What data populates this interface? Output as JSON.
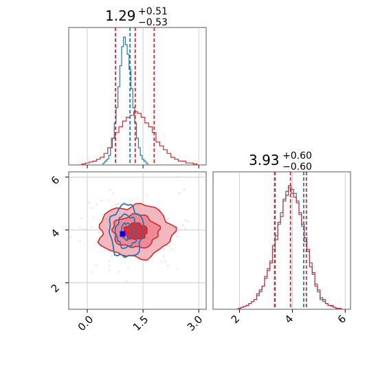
{
  "colors": {
    "dist_a": "#1f77b4",
    "dist_b": "#d62728",
    "marker": "#0000ff",
    "grid": "#cccccc",
    "axes": "#555555"
  },
  "chart_data": [
    {
      "type": "histogram",
      "panel": "marginal-x",
      "title": "1.29",
      "title_plus": "+0.51",
      "title_minus": "−0.53",
      "xlim": [
        -0.5,
        3.2
      ],
      "grid": true,
      "series": [
        {
          "color": "#1f77b4",
          "bin_width": 0.05,
          "x": [
            0.45,
            0.5,
            0.55,
            0.6,
            0.65,
            0.7,
            0.75,
            0.8,
            0.85,
            0.9,
            0.95,
            1.0,
            1.05,
            1.1,
            1.15,
            1.2,
            1.25,
            1.3,
            1.35,
            1.4,
            1.45,
            1.5,
            1.55,
            1.6
          ],
          "counts": [
            1,
            2,
            3,
            5,
            9,
            14,
            22,
            30,
            41,
            52,
            62,
            67,
            63,
            58,
            50,
            40,
            30,
            22,
            14,
            9,
            5,
            3,
            2,
            1
          ],
          "quantiles": [
            1.15
          ]
        },
        {
          "color": "#d62728",
          "bin_width": 0.1,
          "x": [
            -0.1,
            0.0,
            0.1,
            0.2,
            0.3,
            0.4,
            0.5,
            0.6,
            0.7,
            0.8,
            0.9,
            1.0,
            1.1,
            1.2,
            1.3,
            1.4,
            1.5,
            1.6,
            1.7,
            1.8,
            1.9,
            2.0,
            2.1,
            2.2,
            2.3,
            2.4,
            2.5,
            2.6,
            2.7,
            2.8,
            2.9
          ],
          "counts": [
            0.5,
            1,
            1.5,
            2,
            3,
            4,
            6,
            9,
            14,
            17,
            20,
            23,
            25,
            26,
            28,
            27,
            25,
            22,
            20,
            17,
            12,
            10,
            8,
            6,
            4,
            3,
            2,
            2,
            1,
            1,
            0.5
          ],
          "quantiles": [
            0.76,
            1.29,
            1.8
          ]
        }
      ]
    },
    {
      "type": "contour",
      "panel": "joint",
      "xlim": [
        -0.5,
        3.2
      ],
      "ylim": [
        1.0,
        6.2
      ],
      "xticks": [
        "0.0",
        "1.5",
        "3.0"
      ],
      "yticks": [
        "2",
        "4",
        "6"
      ],
      "xtick_values": [
        0.0,
        1.5,
        3.0
      ],
      "ytick_values": [
        2,
        4,
        6
      ],
      "grid": true,
      "marker": {
        "x": 0.95,
        "y": 3.85
      },
      "series": [
        {
          "color": "#d62728",
          "center": [
            1.3,
            3.95
          ],
          "sigma": [
            0.62,
            0.62
          ],
          "levels": [
            0.5,
            1.0,
            1.6
          ],
          "filled": true
        },
        {
          "color": "#1f77b4",
          "center": [
            1.05,
            3.95
          ],
          "sigma": [
            0.28,
            0.62
          ],
          "levels": [
            0.5,
            1.0,
            1.6
          ],
          "filled": false
        }
      ]
    },
    {
      "type": "histogram",
      "panel": "marginal-y",
      "title": "3.93",
      "title_plus": "+0.60",
      "title_minus": "−0.60",
      "xlim": [
        1.0,
        6.2
      ],
      "xticks": [
        "2",
        "4",
        "6"
      ],
      "xtick_values": [
        2,
        4,
        6
      ],
      "grid": true,
      "series": [
        {
          "color": "#1f77b4",
          "bin_width": 0.1,
          "x": [
            2.0,
            2.1,
            2.2,
            2.3,
            2.4,
            2.5,
            2.6,
            2.7,
            2.8,
            2.9,
            3.0,
            3.1,
            3.2,
            3.3,
            3.4,
            3.5,
            3.6,
            3.7,
            3.8,
            3.9,
            4.0,
            4.1,
            4.2,
            4.3,
            4.4,
            4.5,
            4.6,
            4.7,
            4.8,
            4.9,
            5.0,
            5.1,
            5.2,
            5.3,
            5.4,
            5.5,
            5.6,
            5.7,
            5.8
          ],
          "counts": [
            0.5,
            1,
            1.5,
            2,
            3,
            4,
            5,
            7,
            9,
            12,
            16,
            20,
            25,
            31,
            38,
            44,
            50,
            56,
            61,
            64,
            62,
            60,
            56,
            50,
            43,
            37,
            30,
            24,
            18,
            13,
            9,
            6,
            4,
            3,
            2,
            1.5,
            1,
            0.5,
            0.5
          ],
          "quantiles": [
            3.35,
            4.43
          ]
        },
        {
          "color": "#d62728",
          "bin_width": 0.1,
          "x": [
            2.0,
            2.1,
            2.2,
            2.3,
            2.4,
            2.5,
            2.6,
            2.7,
            2.8,
            2.9,
            3.0,
            3.1,
            3.2,
            3.3,
            3.4,
            3.5,
            3.6,
            3.7,
            3.8,
            3.9,
            4.0,
            4.1,
            4.2,
            4.3,
            4.4,
            4.5,
            4.6,
            4.7,
            4.8,
            4.9,
            5.0,
            5.1,
            5.2,
            5.3,
            5.4,
            5.5,
            5.6,
            5.7,
            5.8
          ],
          "counts": [
            0.5,
            1,
            1.5,
            2,
            3,
            4,
            5,
            8,
            10,
            12,
            17,
            21,
            24,
            33,
            36,
            45,
            48,
            57,
            59,
            63,
            60,
            58,
            55,
            49,
            44,
            35,
            31,
            22,
            19,
            12,
            10,
            5,
            5,
            3,
            2,
            2,
            1,
            0.5,
            0.5
          ],
          "quantiles": [
            3.33,
            3.93,
            4.53
          ]
        }
      ]
    }
  ]
}
